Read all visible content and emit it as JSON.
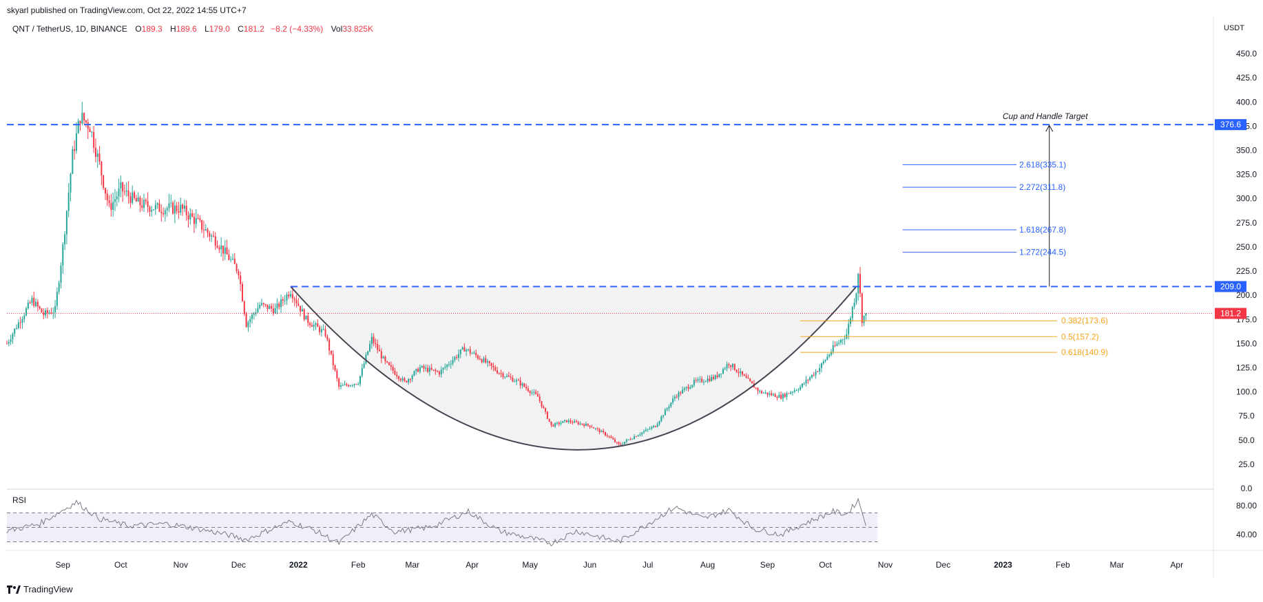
{
  "header": {
    "published": "skyarl published on TradingView.com, Oct 22, 2022 14:55 UTC+7"
  },
  "legend": {
    "symbol": "QNT / TetherUS, 1D, BINANCE",
    "o_label": "O",
    "o_value": "189.3",
    "h_label": "H",
    "h_value": "189.6",
    "l_label": "L",
    "l_value": "179.0",
    "c_label": "C",
    "c_value": "181.2",
    "change": "−8.2 (−4.33%)",
    "vol_label": "Vol",
    "vol_value": "33.825K"
  },
  "price_axis_unit": "USDT",
  "rsi_label": "RSI",
  "footer_brand": "TradingView",
  "colors": {
    "up": "#26a69a",
    "down": "#f23645",
    "blue": "#2962ff",
    "orange": "#f7a21b",
    "fib_blue": "#2962ff"
  },
  "chart_data": {
    "type": "candlestick",
    "ylim": [
      0,
      470
    ],
    "yticks": [
      0,
      25,
      50,
      75,
      100,
      125,
      150,
      175,
      200,
      225,
      250,
      275,
      300,
      325,
      350,
      375,
      400,
      425,
      450
    ],
    "ytick_labels": [
      "0.0",
      "25.0",
      "50.0",
      "75.0",
      "100.0",
      "125.0",
      "150.0",
      "175.0",
      "200.0",
      "225.0",
      "250.0",
      "275.0",
      "300.0",
      "325.0",
      "350.0",
      "375.0",
      "400.0",
      "425.0",
      "450.0"
    ],
    "xticks": [
      {
        "label": "Sep",
        "date": "2021-09-01"
      },
      {
        "label": "Oct",
        "date": "2021-10-01"
      },
      {
        "label": "Nov",
        "date": "2021-11-01"
      },
      {
        "label": "Dec",
        "date": "2021-12-01"
      },
      {
        "label": "2022",
        "date": "2022-01-01"
      },
      {
        "label": "Feb",
        "date": "2022-02-01"
      },
      {
        "label": "Mar",
        "date": "2022-03-01"
      },
      {
        "label": "Apr",
        "date": "2022-04-01"
      },
      {
        "label": "May",
        "date": "2022-05-01"
      },
      {
        "label": "Jun",
        "date": "2022-06-01"
      },
      {
        "label": "Jul",
        "date": "2022-07-01"
      },
      {
        "label": "Aug",
        "date": "2022-08-01"
      },
      {
        "label": "Sep",
        "date": "2022-09-01"
      },
      {
        "label": "Oct",
        "date": "2022-10-01"
      },
      {
        "label": "Nov",
        "date": "2022-11-01"
      },
      {
        "label": "Dec",
        "date": "2022-12-01"
      },
      {
        "label": "2023",
        "date": "2023-01-01"
      },
      {
        "label": "Feb",
        "date": "2023-02-01"
      },
      {
        "label": "Mar",
        "date": "2023-03-01"
      },
      {
        "label": "Apr",
        "date": "2023-04-01"
      }
    ],
    "x_start": "2021-08-03",
    "x_end": "2023-04-20",
    "price_path": [
      {
        "date": "2021-08-03",
        "close": 150
      },
      {
        "date": "2021-08-10",
        "close": 175
      },
      {
        "date": "2021-08-16",
        "close": 195
      },
      {
        "date": "2021-08-22",
        "close": 180
      },
      {
        "date": "2021-08-28",
        "close": 185
      },
      {
        "date": "2021-09-01",
        "close": 250
      },
      {
        "date": "2021-09-06",
        "close": 345
      },
      {
        "date": "2021-09-10",
        "close": 385
      },
      {
        "date": "2021-09-15",
        "close": 375
      },
      {
        "date": "2021-09-20",
        "close": 335
      },
      {
        "date": "2021-09-25",
        "close": 290
      },
      {
        "date": "2021-10-01",
        "close": 310
      },
      {
        "date": "2021-10-10",
        "close": 295
      },
      {
        "date": "2021-10-20",
        "close": 290
      },
      {
        "date": "2021-11-01",
        "close": 290
      },
      {
        "date": "2021-11-10",
        "close": 275
      },
      {
        "date": "2021-11-20",
        "close": 255
      },
      {
        "date": "2021-12-01",
        "close": 225
      },
      {
        "date": "2021-12-05",
        "close": 170
      },
      {
        "date": "2021-12-12",
        "close": 190
      },
      {
        "date": "2021-12-20",
        "close": 185
      },
      {
        "date": "2021-12-28",
        "close": 205
      },
      {
        "date": "2022-01-05",
        "close": 175
      },
      {
        "date": "2022-01-15",
        "close": 160
      },
      {
        "date": "2022-01-22",
        "close": 105
      },
      {
        "date": "2022-02-01",
        "close": 110
      },
      {
        "date": "2022-02-08",
        "close": 155
      },
      {
        "date": "2022-02-15",
        "close": 130
      },
      {
        "date": "2022-02-25",
        "close": 110
      },
      {
        "date": "2022-03-05",
        "close": 125
      },
      {
        "date": "2022-03-15",
        "close": 120
      },
      {
        "date": "2022-03-28",
        "close": 145
      },
      {
        "date": "2022-04-05",
        "close": 135
      },
      {
        "date": "2022-04-15",
        "close": 120
      },
      {
        "date": "2022-04-25",
        "close": 110
      },
      {
        "date": "2022-05-05",
        "close": 95
      },
      {
        "date": "2022-05-12",
        "close": 65
      },
      {
        "date": "2022-05-20",
        "close": 70
      },
      {
        "date": "2022-06-01",
        "close": 65
      },
      {
        "date": "2022-06-10",
        "close": 55
      },
      {
        "date": "2022-06-16",
        "close": 45
      },
      {
        "date": "2022-06-25",
        "close": 55
      },
      {
        "date": "2022-07-05",
        "close": 65
      },
      {
        "date": "2022-07-15",
        "close": 95
      },
      {
        "date": "2022-07-25",
        "close": 110
      },
      {
        "date": "2022-08-05",
        "close": 115
      },
      {
        "date": "2022-08-12",
        "close": 130
      },
      {
        "date": "2022-08-20",
        "close": 115
      },
      {
        "date": "2022-08-28",
        "close": 100
      },
      {
        "date": "2022-09-08",
        "close": 95
      },
      {
        "date": "2022-09-18",
        "close": 105
      },
      {
        "date": "2022-09-28",
        "close": 125
      },
      {
        "date": "2022-10-05",
        "close": 145
      },
      {
        "date": "2022-10-12",
        "close": 160
      },
      {
        "date": "2022-10-17",
        "close": 205
      },
      {
        "date": "2022-10-18",
        "close": 225
      },
      {
        "date": "2022-10-20",
        "close": 175
      },
      {
        "date": "2022-10-22",
        "close": 181.2
      }
    ],
    "current_price": 181.2,
    "levels": [
      {
        "name": "resistance",
        "value": 209.0,
        "label": "209.0"
      },
      {
        "name": "target",
        "value": 376.6,
        "label": "376.6"
      },
      {
        "name": "current",
        "value": 181.2,
        "label": "181.2"
      }
    ],
    "target_label": "Cup and Handle Target",
    "fib_extensions": [
      {
        "ratio": "2.618",
        "value": 335.1,
        "label": "2.618(335.1)"
      },
      {
        "ratio": "2.272",
        "value": 311.8,
        "label": "2.272(311.8)"
      },
      {
        "ratio": "1.618",
        "value": 267.8,
        "label": "1.618(267.8)"
      },
      {
        "ratio": "1.272",
        "value": 244.5,
        "label": "1.272(244.5)"
      }
    ],
    "fib_retracements": [
      {
        "ratio": "0.382",
        "value": 173.6,
        "label": "0.382(173.6)"
      },
      {
        "ratio": "0.5",
        "value": 157.2,
        "label": "0.5(157.2)"
      },
      {
        "ratio": "0.618",
        "value": 140.9,
        "label": "0.618(140.9)"
      }
    ],
    "cup": {
      "start_date": "2021-12-28",
      "start_value": 209,
      "bottom_date": "2022-05-28",
      "bottom_value": 40,
      "end_date": "2022-10-17",
      "end_value": 209
    },
    "rsi": {
      "ylim": [
        20,
        100
      ],
      "ytick_labels": [
        "80.00",
        "40.00"
      ],
      "yticks": [
        80,
        40
      ],
      "band_upper": 70,
      "band_middle": 50,
      "band_lower": 30,
      "path": [
        {
          "date": "2021-08-03",
          "value": 45
        },
        {
          "date": "2021-08-20",
          "value": 55
        },
        {
          "date": "2021-09-08",
          "value": 85
        },
        {
          "date": "2021-09-20",
          "value": 62
        },
        {
          "date": "2021-10-05",
          "value": 52
        },
        {
          "date": "2021-10-25",
          "value": 55
        },
        {
          "date": "2021-11-10",
          "value": 48
        },
        {
          "date": "2021-11-25",
          "value": 40
        },
        {
          "date": "2021-12-05",
          "value": 33
        },
        {
          "date": "2021-12-20",
          "value": 50
        },
        {
          "date": "2021-12-28",
          "value": 58
        },
        {
          "date": "2022-01-10",
          "value": 45
        },
        {
          "date": "2022-01-22",
          "value": 28
        },
        {
          "date": "2022-02-08",
          "value": 68
        },
        {
          "date": "2022-02-20",
          "value": 44
        },
        {
          "date": "2022-03-10",
          "value": 50
        },
        {
          "date": "2022-03-30",
          "value": 72
        },
        {
          "date": "2022-04-15",
          "value": 45
        },
        {
          "date": "2022-05-12",
          "value": 28
        },
        {
          "date": "2022-05-25",
          "value": 45
        },
        {
          "date": "2022-06-16",
          "value": 30
        },
        {
          "date": "2022-07-01",
          "value": 55
        },
        {
          "date": "2022-07-15",
          "value": 78
        },
        {
          "date": "2022-07-30",
          "value": 62
        },
        {
          "date": "2022-08-12",
          "value": 74
        },
        {
          "date": "2022-08-25",
          "value": 48
        },
        {
          "date": "2022-09-08",
          "value": 40
        },
        {
          "date": "2022-09-20",
          "value": 55
        },
        {
          "date": "2022-10-05",
          "value": 72
        },
        {
          "date": "2022-10-12",
          "value": 68
        },
        {
          "date": "2022-10-18",
          "value": 88
        },
        {
          "date": "2022-10-22",
          "value": 56
        }
      ]
    }
  }
}
